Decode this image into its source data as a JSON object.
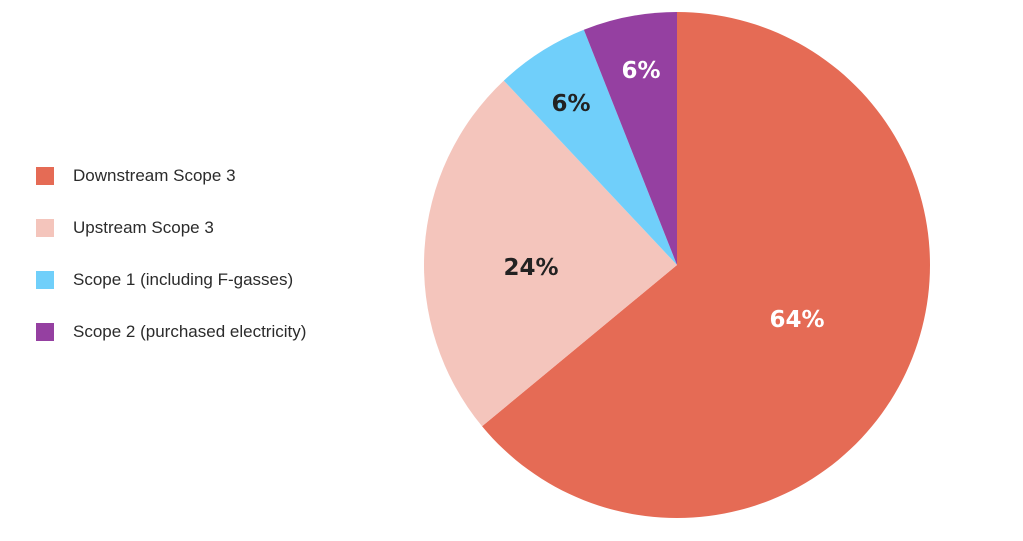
{
  "chart_data": {
    "type": "pie",
    "title": "",
    "categories": [
      "Downstream Scope 3",
      "Upstream Scope 3",
      "Scope 1 (including F-gasses)",
      "Scope 2 (purchased electricity)"
    ],
    "values": [
      64,
      24,
      6,
      6
    ],
    "data_labels": [
      "64%",
      "24%",
      "6%",
      "6%"
    ],
    "colors": [
      "#e56b55",
      "#f4c5bc",
      "#70cffa",
      "#9540a1"
    ],
    "label_colors": [
      "#ffffff",
      "#222222",
      "#222222",
      "#ffffff"
    ],
    "start_angle_deg": 0,
    "direction": "clockwise",
    "legend_position": "left"
  }
}
